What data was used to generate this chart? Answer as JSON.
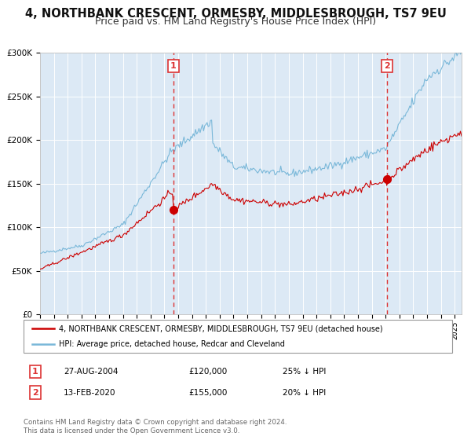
{
  "title": "4, NORTHBANK CRESCENT, ORMESBY, MIDDLESBROUGH, TS7 9EU",
  "subtitle": "Price paid vs. HM Land Registry's House Price Index (HPI)",
  "legend_line1": "4, NORTHBANK CRESCENT, ORMESBY, MIDDLESBROUGH, TS7 9EU (detached house)",
  "legend_line2": "HPI: Average price, detached house, Redcar and Cleveland",
  "footnote": "Contains HM Land Registry data © Crown copyright and database right 2024.\nThis data is licensed under the Open Government Licence v3.0.",
  "marker1_date": "27-AUG-2004",
  "marker1_price": "£120,000",
  "marker1_hpi": "25% ↓ HPI",
  "marker2_date": "13-FEB-2020",
  "marker2_price": "£155,000",
  "marker2_hpi": "20% ↓ HPI",
  "marker1_x": 2004.65,
  "marker2_x": 2020.12,
  "sale1_price": 120000,
  "sale2_price": 155000,
  "ylim_max": 300000,
  "xlim_start": 1995,
  "xlim_end": 2025.5,
  "background_color": "#FFFFFF",
  "plot_bg_color": "#dce9f5",
  "shade_between_color": "#e8f1f9",
  "grid_color": "#FFFFFF",
  "hpi_color": "#7ab8d9",
  "price_color": "#cc0000",
  "vline_color": "#dd3333",
  "marker_face_color": "#cc0000",
  "title_fontsize": 10.5,
  "subtitle_fontsize": 9.0,
  "tick_fontsize": 7.0,
  "ytick_fontsize": 7.5
}
